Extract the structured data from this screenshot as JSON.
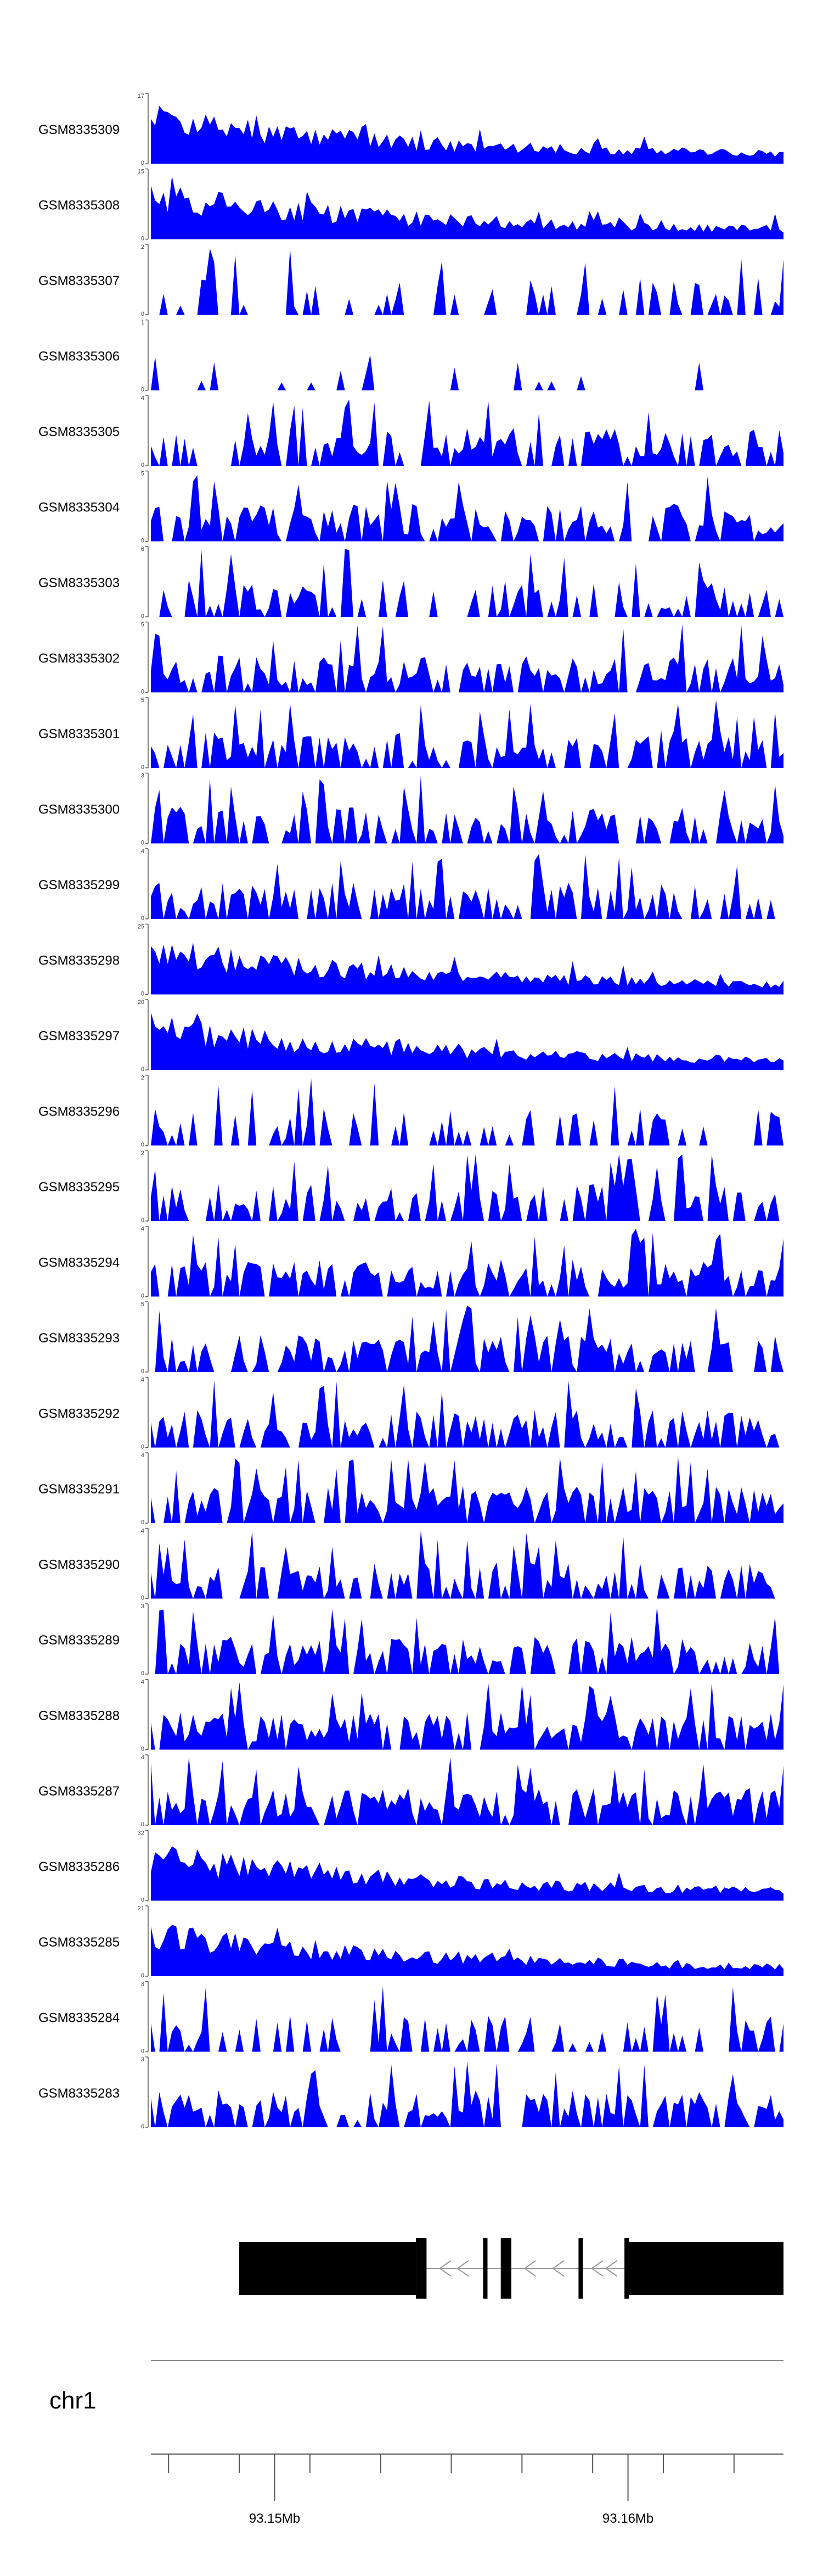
{
  "chart_data": {
    "type": "area",
    "fill_color": "#0000ff",
    "gene_color": "#000000",
    "axis_color": "#555555",
    "chromosome": "chr1",
    "x_range": [
      93.1465,
      93.1644
    ],
    "x_unit": "Mb",
    "x_tick_labels": [
      {
        "pos": 93.15,
        "label": "93.15Mb"
      },
      {
        "pos": 93.16,
        "label": "93.16Mb"
      }
    ],
    "x_minor_ticks": [
      93.147,
      93.149,
      93.151,
      93.153,
      93.155,
      93.157,
      93.159,
      93.161,
      93.163
    ],
    "gene_model": {
      "strand": "-",
      "span": [
        93.149,
        93.1644
      ],
      "exons": [
        {
          "start": 93.149,
          "end": 93.154,
          "thick": false
        },
        {
          "start": 93.154,
          "end": 93.1543,
          "thick": true
        },
        {
          "start": 93.1559,
          "end": 93.156,
          "thick": true
        },
        {
          "start": 93.1564,
          "end": 93.1567,
          "thick": true
        },
        {
          "start": 93.1586,
          "end": 93.1587,
          "thick": true
        },
        {
          "start": 93.1599,
          "end": 93.16,
          "thick": true
        },
        {
          "start": 93.16,
          "end": 93.1644,
          "thick": false
        }
      ]
    },
    "tracks": [
      {
        "name": "GSM8335309",
        "ymax": 17,
        "profile": "decay",
        "sparsity": 0.0,
        "seed": 11
      },
      {
        "name": "GSM8335308",
        "ymax": 15,
        "profile": "decay",
        "sparsity": 0.0,
        "seed": 12
      },
      {
        "name": "GSM8335307",
        "ymax": 2,
        "profile": "flat",
        "sparsity": 0.72,
        "seed": 13
      },
      {
        "name": "GSM8335306",
        "ymax": 1,
        "profile": "flat",
        "sparsity": 0.88,
        "seed": 14
      },
      {
        "name": "GSM8335305",
        "ymax": 4,
        "profile": "flat",
        "sparsity": 0.32,
        "seed": 15
      },
      {
        "name": "GSM8335304",
        "ymax": 5,
        "profile": "flat",
        "sparsity": 0.28,
        "seed": 16
      },
      {
        "name": "GSM8335303",
        "ymax": 6,
        "profile": "flat",
        "sparsity": 0.55,
        "seed": 17
      },
      {
        "name": "GSM8335302",
        "ymax": 5,
        "profile": "flat",
        "sparsity": 0.3,
        "seed": 18
      },
      {
        "name": "GSM8335301",
        "ymax": 5,
        "profile": "flat",
        "sparsity": 0.35,
        "seed": 19
      },
      {
        "name": "GSM8335300",
        "ymax": 3,
        "profile": "flat",
        "sparsity": 0.4,
        "seed": 20
      },
      {
        "name": "GSM8335299",
        "ymax": 4,
        "profile": "flat",
        "sparsity": 0.35,
        "seed": 21
      },
      {
        "name": "GSM8335298",
        "ymax": 25,
        "profile": "decay",
        "sparsity": 0.0,
        "seed": 22
      },
      {
        "name": "GSM8335297",
        "ymax": 20,
        "profile": "decay",
        "sparsity": 0.0,
        "seed": 23
      },
      {
        "name": "GSM8335296",
        "ymax": 2,
        "profile": "flat",
        "sparsity": 0.7,
        "seed": 24
      },
      {
        "name": "GSM8335295",
        "ymax": 2,
        "profile": "flat",
        "sparsity": 0.5,
        "seed": 25
      },
      {
        "name": "GSM8335294",
        "ymax": 4,
        "profile": "flat",
        "sparsity": 0.2,
        "seed": 26
      },
      {
        "name": "GSM8335293",
        "ymax": 5,
        "profile": "flat",
        "sparsity": 0.25,
        "seed": 27
      },
      {
        "name": "GSM8335292",
        "ymax": 4,
        "profile": "flat",
        "sparsity": 0.3,
        "seed": 28
      },
      {
        "name": "GSM8335291",
        "ymax": 4,
        "profile": "flat",
        "sparsity": 0.25,
        "seed": 29
      },
      {
        "name": "GSM8335290",
        "ymax": 4,
        "profile": "flat",
        "sparsity": 0.35,
        "seed": 30
      },
      {
        "name": "GSM8335289",
        "ymax": 3,
        "profile": "flat",
        "sparsity": 0.25,
        "seed": 31
      },
      {
        "name": "GSM8335288",
        "ymax": 4,
        "profile": "flat",
        "sparsity": 0.15,
        "seed": 32
      },
      {
        "name": "GSM8335287",
        "ymax": 4,
        "profile": "flat",
        "sparsity": 0.15,
        "seed": 33
      },
      {
        "name": "GSM8335286",
        "ymax": 32,
        "profile": "decay",
        "sparsity": 0.0,
        "seed": 34
      },
      {
        "name": "GSM8335285",
        "ymax": 21,
        "profile": "decay",
        "sparsity": 0.0,
        "seed": 35
      },
      {
        "name": "GSM8335284",
        "ymax": 3,
        "profile": "flat",
        "sparsity": 0.6,
        "seed": 36
      },
      {
        "name": "GSM8335283",
        "ymax": 3,
        "profile": "flat",
        "sparsity": 0.3,
        "seed": 37
      }
    ]
  }
}
